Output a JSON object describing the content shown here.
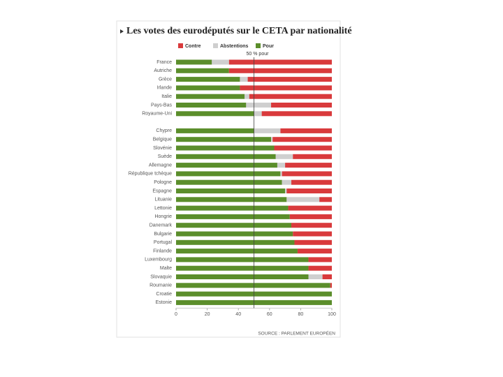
{
  "chart_data": {
    "type": "stacked_barh",
    "title": "Les votes des eurodéputés sur le CETA par nationalité",
    "source": "SOURCE : PARLEMENT EUROPÉEN",
    "reference_line": {
      "value": 50,
      "label": "50 % pour"
    },
    "categories": [
      "France",
      "Autriche",
      "Grèce",
      "Irlande",
      "Italie",
      "Pays-Bas",
      "Royaume-Uni",
      null,
      "Chypre",
      "Belgique",
      "Slovénie",
      "Suède",
      "Allemagne",
      "République tchèque",
      "Pologne",
      "Espagne",
      "Lituanie",
      "Lettonie",
      "Hongrie",
      "Danemark",
      "Bulgarie",
      "Portugal",
      "Finlande",
      "Luxembourg",
      "Malte",
      "Slovaquie",
      "Roumanie",
      "Croatie",
      "Estonie"
    ],
    "series": [
      {
        "name": "Contre",
        "color": "#d93a3c",
        "values": [
          66,
          66,
          54,
          59,
          53,
          39,
          45,
          null,
          33,
          38,
          37,
          25,
          30,
          32,
          26,
          29,
          8,
          28,
          27,
          26,
          25,
          24,
          22,
          15,
          15,
          6,
          1,
          0,
          0
        ]
      },
      {
        "name": "Abstentions",
        "color": "#cfcfcf",
        "values": [
          11,
          0,
          5,
          0,
          3,
          16,
          5,
          null,
          17,
          1,
          0,
          11,
          5,
          1,
          6,
          1,
          21,
          0,
          0,
          0,
          0,
          0,
          0,
          0,
          0,
          9,
          0,
          0,
          0
        ]
      },
      {
        "name": "Pour",
        "color": "#5b8e2b",
        "values": [
          23,
          34,
          41,
          41,
          44,
          45,
          50,
          null,
          50,
          61,
          63,
          64,
          65,
          67,
          68,
          70,
          71,
          72,
          73,
          74,
          75,
          76,
          78,
          85,
          85,
          85,
          99,
          100,
          100
        ]
      }
    ],
    "xlim": [
      0,
      100
    ],
    "xticks": [
      0,
      20,
      40,
      60,
      80,
      100
    ],
    "grid": false
  }
}
